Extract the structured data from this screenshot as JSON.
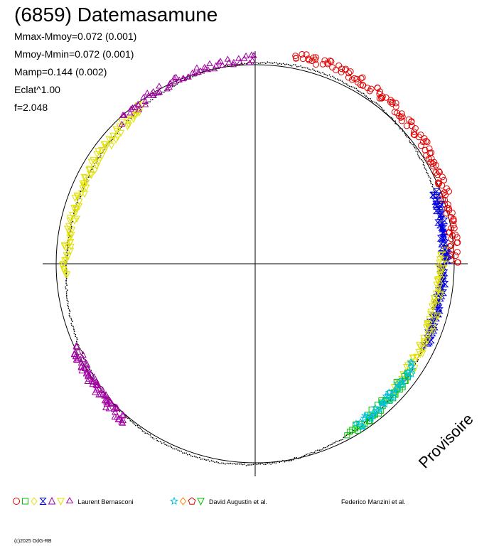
{
  "title": "(6859) Datemasamune",
  "stats": [
    "Mmax-Mmoy=0.072 (0.001)",
    "Mmoy-Mmin=0.072 (0.001)",
    "Mamp=0.144 (0.002)",
    "Eclat^1.00",
    "f=2.048"
  ],
  "watermark": "Provisoire",
  "copyright": "(c)2025 OdG-RB",
  "observers": [
    {
      "name": "Laurent Bernasconi",
      "symbols": [
        {
          "shape": "circle",
          "color": "#e00000"
        },
        {
          "shape": "square",
          "color": "#00c000"
        },
        {
          "shape": "diamond",
          "color": "#e0e000"
        },
        {
          "shape": "hourglass",
          "color": "#0000e0"
        },
        {
          "shape": "triangle-up",
          "color": "#a000a0"
        },
        {
          "shape": "triangle-down",
          "color": "#e0e000"
        },
        {
          "shape": "star-tri",
          "color": "#a000a0"
        }
      ]
    },
    {
      "name": "David Augustin et al.",
      "symbols": [
        {
          "shape": "star",
          "color": "#00c0e0"
        },
        {
          "shape": "diamond4",
          "color": "#ff8000"
        },
        {
          "shape": "pentagon",
          "color": "#e00000"
        },
        {
          "shape": "triangle-down",
          "color": "#00c000"
        }
      ]
    },
    {
      "name": "Federico Manzini et al.",
      "symbols": []
    }
  ],
  "chart_data": {
    "type": "scatter",
    "polar": true,
    "reference_circle_radius": 1.0,
    "phase_fit_amplitude": 0.072,
    "axes": "cross through center",
    "fit_curve": true,
    "series": [
      {
        "observer": "Laurent Bernasconi",
        "shape": "circle",
        "color": "#e00000",
        "phase": [
          0.03,
          0.25
        ],
        "offset": 0.05,
        "count": 140
      },
      {
        "observer": "Laurent Bernasconi",
        "shape": "hourglass",
        "color": "#0000e0",
        "phase": [
          0.19,
          0.32
        ],
        "offset": 0.0,
        "count": 90
      },
      {
        "observer": "Laurent Bernasconi",
        "shape": "triangle-down",
        "color": "#e0e000",
        "phase": [
          0.24,
          0.37
        ],
        "offset": -0.01,
        "count": 80
      },
      {
        "observer": "Laurent Bernasconi",
        "shape": "square",
        "color": "#00c000",
        "phase": [
          0.35,
          0.42
        ],
        "offset": -0.01,
        "count": 40
      },
      {
        "observer": "David Augustin et al.",
        "shape": "star",
        "color": "#00c0e0",
        "phase": [
          0.34,
          0.41
        ],
        "offset": -0.01,
        "count": 40
      },
      {
        "observer": "Laurent Bernasconi",
        "shape": "triangle-up",
        "color": "#a000a0",
        "phase": [
          0.61,
          0.68
        ],
        "offset": 0.02,
        "count": 70
      },
      {
        "observer": "Laurent Bernasconi",
        "shape": "triangle-down",
        "color": "#e0e000",
        "phase": [
          0.74,
          0.9
        ],
        "offset": 0.0,
        "count": 90
      },
      {
        "observer": "Laurent Bernasconi",
        "shape": "star-tri",
        "color": "#a000a0",
        "phase": [
          0.88,
          1.0
        ],
        "offset": 0.02,
        "count": 60
      }
    ]
  }
}
